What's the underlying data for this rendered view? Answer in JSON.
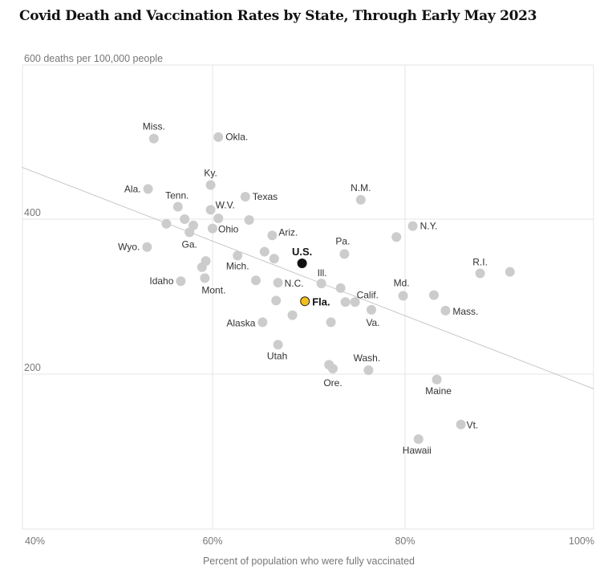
{
  "chart_data": {
    "type": "scatter",
    "title": "Covid Death and Vaccination Rates by State, Through Early May 2023",
    "ylabel": "600 deaths per 100,000 people",
    "xlabel": "Percent of population who were fully vaccinated",
    "xlim": [
      40,
      100
    ],
    "ylim": [
      0,
      600
    ],
    "x_ticks": [
      {
        "v": 40,
        "label": "40%"
      },
      {
        "v": 60,
        "label": "60%"
      },
      {
        "v": 80,
        "label": "80%"
      },
      {
        "v": 100,
        "label": "100%"
      }
    ],
    "y_ticks": [
      {
        "v": 200,
        "label": "200"
      },
      {
        "v": 400,
        "label": "400"
      }
    ],
    "grid": true,
    "trendline": {
      "x": [
        40.2,
        99.6
      ],
      "y": [
        467,
        181
      ]
    },
    "colors": {
      "point": "#cccccc",
      "us": "#111111",
      "fla": "#f2bf1a",
      "grid": "#e6e6e6",
      "trend": "#bbbbbb"
    },
    "points": [
      {
        "x": 53.9,
        "y": 504,
        "label": "Miss."
      },
      {
        "x": 60.6,
        "y": 506,
        "label": "Okla."
      },
      {
        "x": 59.8,
        "y": 444,
        "label": "Ky."
      },
      {
        "x": 53.3,
        "y": 439,
        "label": "Ala."
      },
      {
        "x": 63.4,
        "y": 429,
        "label": "Texas"
      },
      {
        "x": 75.4,
        "y": 425,
        "label": "N.M."
      },
      {
        "x": 56.4,
        "y": 416,
        "label": "Tenn."
      },
      {
        "x": 59.8,
        "y": 412,
        "label": "W.V."
      },
      {
        "x": 57.1,
        "y": 400,
        "label": ""
      },
      {
        "x": 60.6,
        "y": 401,
        "label": ""
      },
      {
        "x": 63.8,
        "y": 399,
        "label": ""
      },
      {
        "x": 55.2,
        "y": 394,
        "label": ""
      },
      {
        "x": 58.0,
        "y": 392,
        "label": ""
      },
      {
        "x": 80.8,
        "y": 391,
        "label": "N.Y."
      },
      {
        "x": 60.0,
        "y": 388,
        "label": "Ohio"
      },
      {
        "x": 57.6,
        "y": 383,
        "label": "Ga."
      },
      {
        "x": 66.2,
        "y": 379,
        "label": "Ariz."
      },
      {
        "x": 79.1,
        "y": 377,
        "label": ""
      },
      {
        "x": 53.2,
        "y": 364,
        "label": "Wyo."
      },
      {
        "x": 65.4,
        "y": 358,
        "label": ""
      },
      {
        "x": 62.6,
        "y": 353,
        "label": "Mich."
      },
      {
        "x": 73.7,
        "y": 355,
        "label": "Pa."
      },
      {
        "x": 66.4,
        "y": 349,
        "label": ""
      },
      {
        "x": 59.3,
        "y": 346,
        "label": ""
      },
      {
        "x": 69.3,
        "y": 343,
        "label": "U.S.",
        "highlight": "us"
      },
      {
        "x": 58.9,
        "y": 338,
        "label": ""
      },
      {
        "x": 87.8,
        "y": 330,
        "label": "R.I."
      },
      {
        "x": 90.9,
        "y": 332,
        "label": ""
      },
      {
        "x": 56.7,
        "y": 320,
        "label": "Idaho"
      },
      {
        "x": 59.2,
        "y": 324,
        "label": "Mont."
      },
      {
        "x": 64.5,
        "y": 321,
        "label": ""
      },
      {
        "x": 66.8,
        "y": 318,
        "label": "N.C."
      },
      {
        "x": 71.3,
        "y": 317,
        "label": "Ill."
      },
      {
        "x": 73.3,
        "y": 311,
        "label": ""
      },
      {
        "x": 79.8,
        "y": 301,
        "label": "Md."
      },
      {
        "x": 83.0,
        "y": 302,
        "label": ""
      },
      {
        "x": 69.6,
        "y": 294,
        "label": "Fla.",
        "highlight": "fla"
      },
      {
        "x": 66.6,
        "y": 295,
        "label": ""
      },
      {
        "x": 73.8,
        "y": 293,
        "label": ""
      },
      {
        "x": 74.8,
        "y": 293,
        "label": "Calif."
      },
      {
        "x": 76.5,
        "y": 283,
        "label": "Va."
      },
      {
        "x": 84.2,
        "y": 282,
        "label": "Mass."
      },
      {
        "x": 68.3,
        "y": 276,
        "label": ""
      },
      {
        "x": 65.2,
        "y": 267,
        "label": "Alaska"
      },
      {
        "x": 72.3,
        "y": 267,
        "label": ""
      },
      {
        "x": 66.8,
        "y": 238,
        "label": "Utah"
      },
      {
        "x": 72.1,
        "y": 212,
        "label": ""
      },
      {
        "x": 72.5,
        "y": 207,
        "label": "Ore."
      },
      {
        "x": 76.2,
        "y": 205,
        "label": "Wash."
      },
      {
        "x": 83.3,
        "y": 193,
        "label": "Maine"
      },
      {
        "x": 85.8,
        "y": 135,
        "label": "Vt."
      },
      {
        "x": 81.4,
        "y": 116,
        "label": "Hawaii"
      }
    ]
  }
}
